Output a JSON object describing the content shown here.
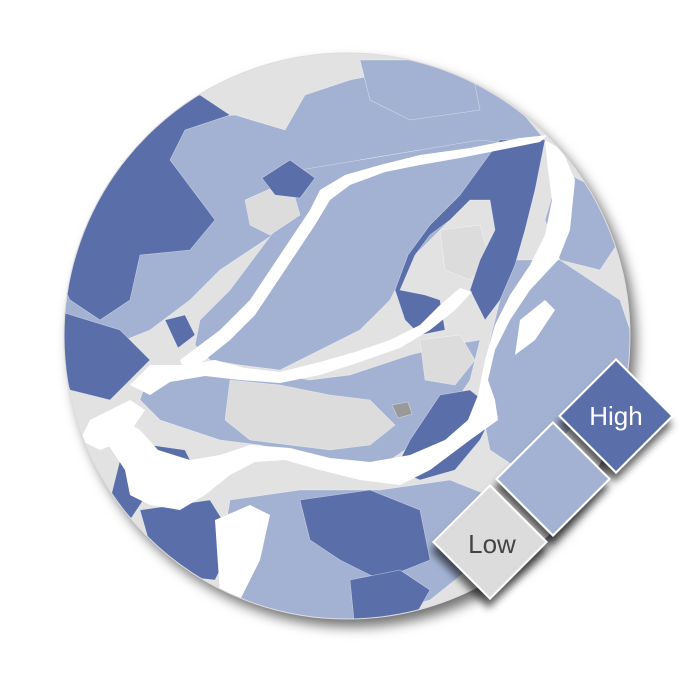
{
  "map": {
    "colors": {
      "water": "#ffffff",
      "land_none": "#e2e2e2",
      "low": "#dcdcdc",
      "mid": "#a3b2d3",
      "high": "#5a6ea9",
      "missing": "#999999",
      "boundary": "#ffffff"
    }
  },
  "legend": {
    "high_label": "High",
    "low_label": "Low",
    "levels": [
      "low",
      "mid",
      "high"
    ]
  }
}
